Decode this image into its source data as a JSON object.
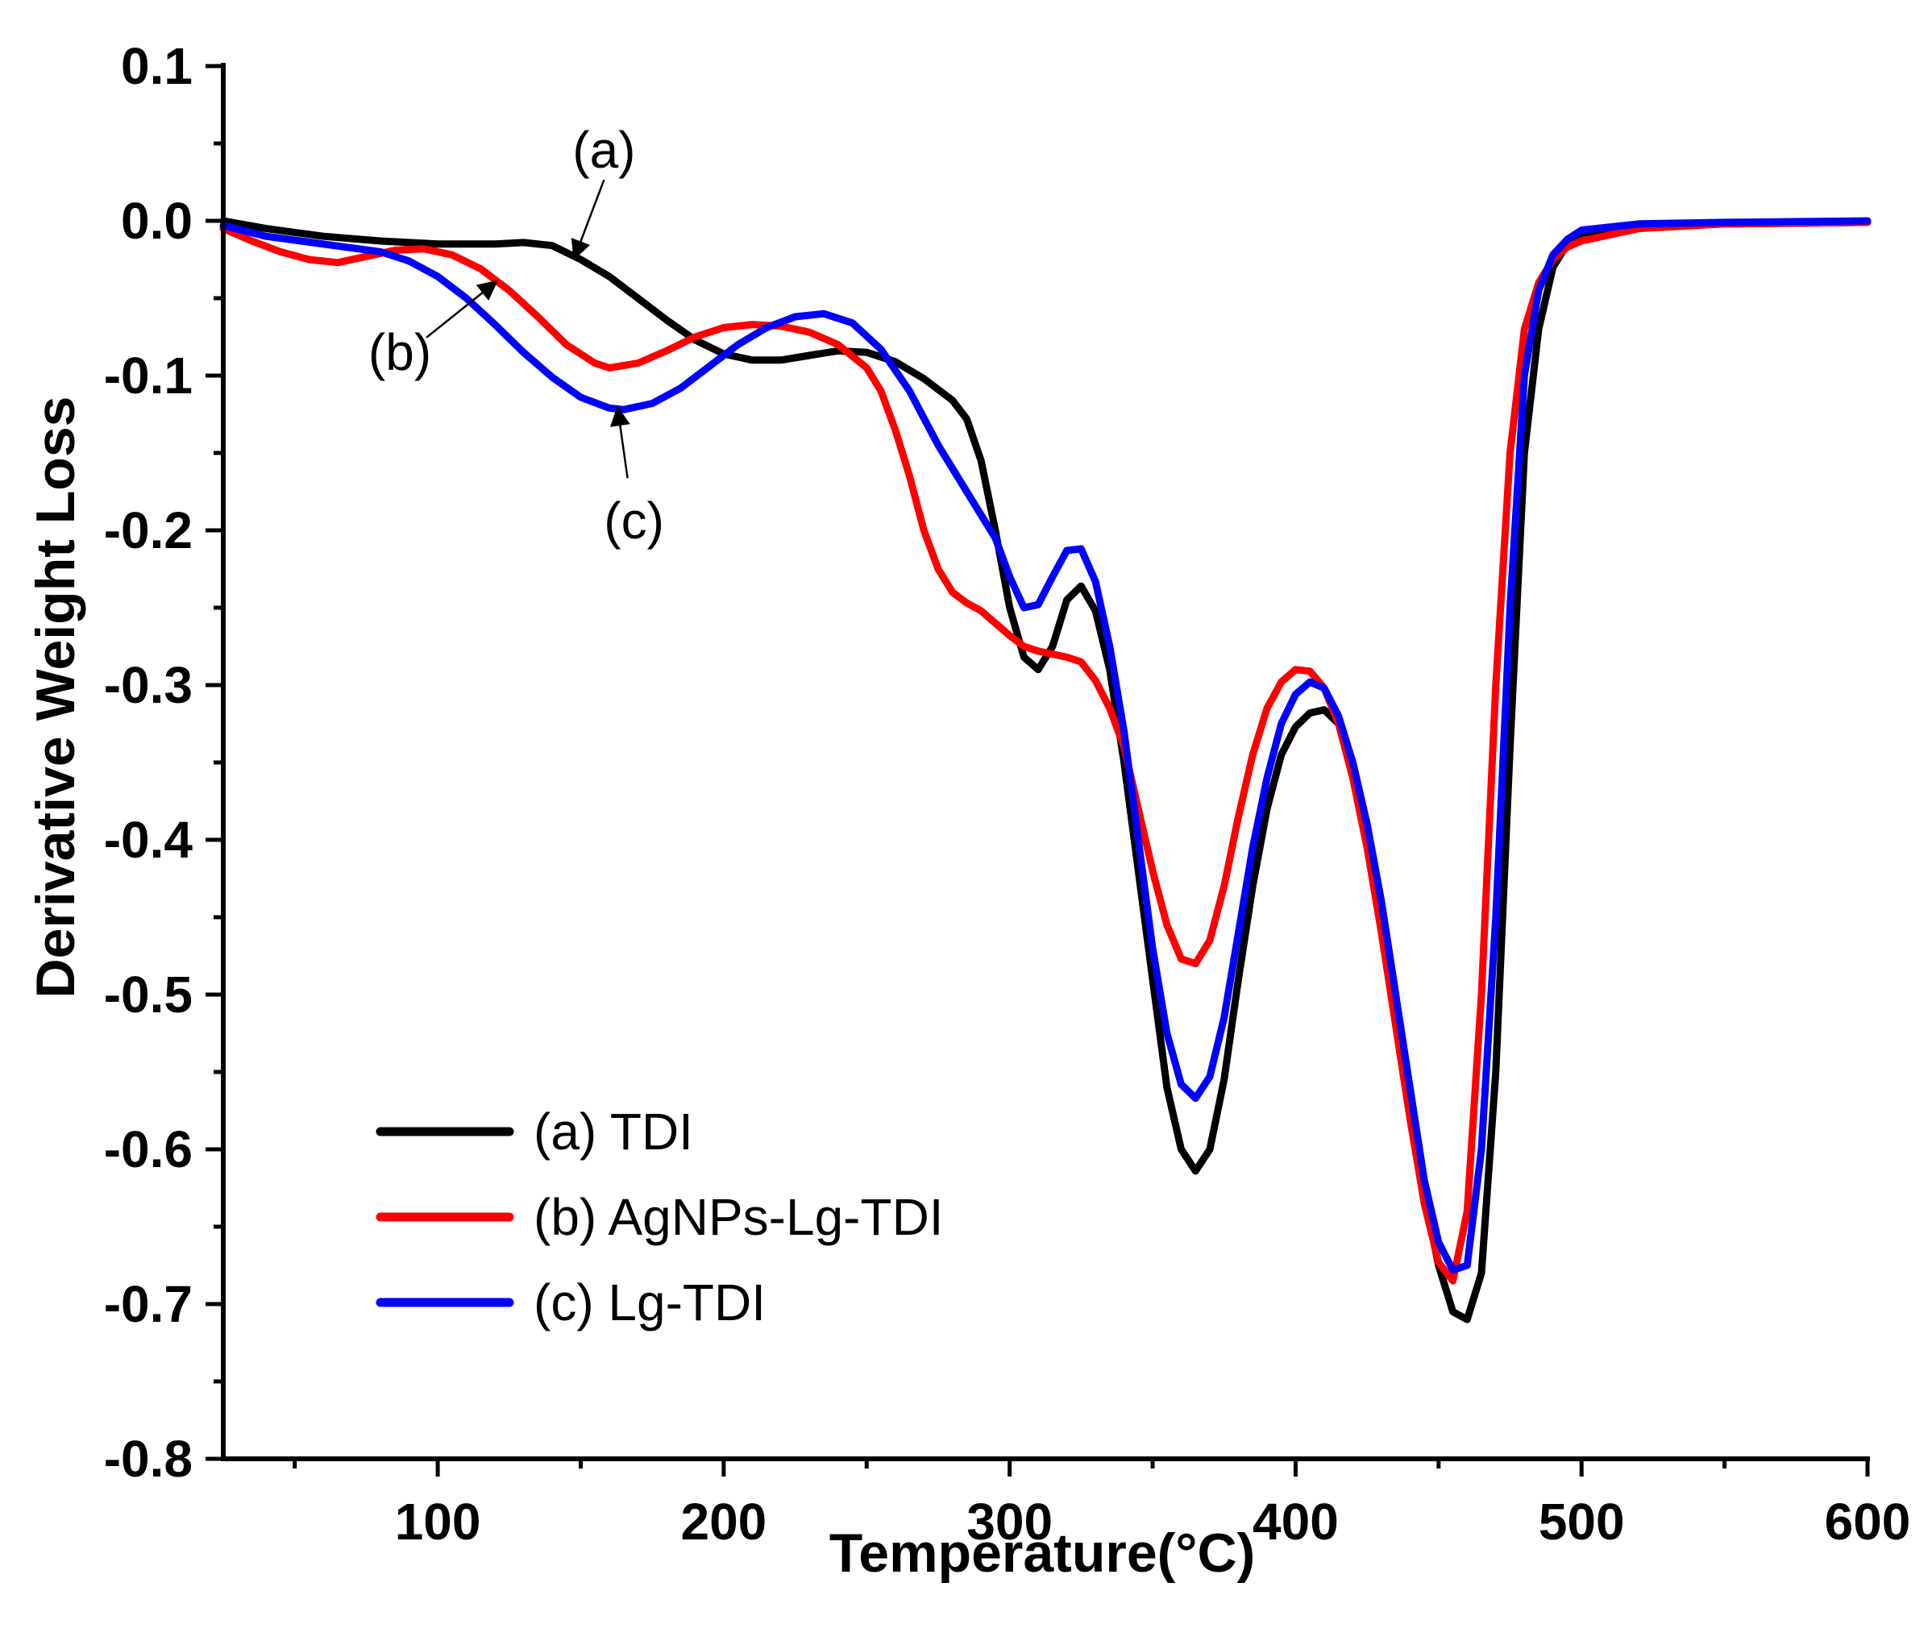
{
  "chart_data": {
    "type": "line",
    "title": "",
    "xlabel": "Temperature(°C)",
    "ylabel": "Derivative Weight Loss",
    "xlim": [
      25,
      600
    ],
    "ylim": [
      -0.8,
      0.1
    ],
    "x_ticks": [
      100,
      200,
      300,
      400,
      500,
      600
    ],
    "x_tick_labels": [
      "100",
      "200",
      "300",
      "400",
      "500",
      "600"
    ],
    "y_ticks": [
      0.1,
      0.0,
      -0.1,
      -0.2,
      -0.3,
      -0.4,
      -0.5,
      -0.6,
      -0.7,
      -0.8
    ],
    "y_tick_labels": [
      "0.1",
      "0.0",
      "-0.1",
      "-0.2",
      "-0.3",
      "-0.4",
      "-0.5",
      "-0.6",
      "-0.7",
      "-0.8"
    ],
    "grid": false,
    "legend": {
      "placement": "bottom-left"
    },
    "series": [
      {
        "name": "(a) TDI",
        "color": "#000000",
        "points": [
          [
            25,
            0.0
          ],
          [
            40,
            -0.005
          ],
          [
            60,
            -0.01
          ],
          [
            80,
            -0.013
          ],
          [
            100,
            -0.015
          ],
          [
            120,
            -0.015
          ],
          [
            130,
            -0.014
          ],
          [
            140,
            -0.016
          ],
          [
            150,
            -0.025
          ],
          [
            160,
            -0.036
          ],
          [
            170,
            -0.05
          ],
          [
            180,
            -0.064
          ],
          [
            190,
            -0.077
          ],
          [
            200,
            -0.086
          ],
          [
            210,
            -0.09
          ],
          [
            220,
            -0.09
          ],
          [
            230,
            -0.087
          ],
          [
            240,
            -0.084
          ],
          [
            250,
            -0.085
          ],
          [
            260,
            -0.091
          ],
          [
            270,
            -0.102
          ],
          [
            280,
            -0.116
          ],
          [
            285,
            -0.128
          ],
          [
            290,
            -0.155
          ],
          [
            295,
            -0.2
          ],
          [
            300,
            -0.25
          ],
          [
            305,
            -0.282
          ],
          [
            310,
            -0.29
          ],
          [
            315,
            -0.275
          ],
          [
            320,
            -0.245
          ],
          [
            325,
            -0.236
          ],
          [
            330,
            -0.252
          ],
          [
            335,
            -0.29
          ],
          [
            340,
            -0.35
          ],
          [
            345,
            -0.42
          ],
          [
            350,
            -0.49
          ],
          [
            355,
            -0.56
          ],
          [
            360,
            -0.6
          ],
          [
            365,
            -0.614
          ],
          [
            370,
            -0.6
          ],
          [
            375,
            -0.555
          ],
          [
            380,
            -0.49
          ],
          [
            385,
            -0.43
          ],
          [
            390,
            -0.38
          ],
          [
            395,
            -0.345
          ],
          [
            400,
            -0.327
          ],
          [
            405,
            -0.318
          ],
          [
            410,
            -0.316
          ],
          [
            415,
            -0.325
          ],
          [
            420,
            -0.35
          ],
          [
            425,
            -0.39
          ],
          [
            430,
            -0.44
          ],
          [
            435,
            -0.5
          ],
          [
            440,
            -0.565
          ],
          [
            445,
            -0.63
          ],
          [
            450,
            -0.675
          ],
          [
            455,
            -0.705
          ],
          [
            460,
            -0.71
          ],
          [
            465,
            -0.68
          ],
          [
            470,
            -0.55
          ],
          [
            475,
            -0.34
          ],
          [
            480,
            -0.15
          ],
          [
            485,
            -0.07
          ],
          [
            490,
            -0.03
          ],
          [
            495,
            -0.015
          ],
          [
            500,
            -0.008
          ],
          [
            520,
            -0.004
          ],
          [
            550,
            -0.002
          ],
          [
            600,
            -0.001
          ]
        ]
      },
      {
        "name": "(b) AgNPs-Lg-TDI",
        "color": "#ff0000",
        "points": [
          [
            25,
            -0.005
          ],
          [
            35,
            -0.013
          ],
          [
            45,
            -0.02
          ],
          [
            55,
            -0.025
          ],
          [
            65,
            -0.027
          ],
          [
            75,
            -0.023
          ],
          [
            85,
            -0.019
          ],
          [
            95,
            -0.018
          ],
          [
            105,
            -0.022
          ],
          [
            115,
            -0.031
          ],
          [
            125,
            -0.045
          ],
          [
            135,
            -0.062
          ],
          [
            145,
            -0.08
          ],
          [
            155,
            -0.092
          ],
          [
            160,
            -0.095
          ],
          [
            170,
            -0.092
          ],
          [
            180,
            -0.084
          ],
          [
            190,
            -0.075
          ],
          [
            200,
            -0.069
          ],
          [
            210,
            -0.067
          ],
          [
            220,
            -0.068
          ],
          [
            230,
            -0.072
          ],
          [
            240,
            -0.08
          ],
          [
            250,
            -0.095
          ],
          [
            255,
            -0.11
          ],
          [
            260,
            -0.135
          ],
          [
            265,
            -0.165
          ],
          [
            270,
            -0.2
          ],
          [
            275,
            -0.225
          ],
          [
            280,
            -0.24
          ],
          [
            285,
            -0.247
          ],
          [
            290,
            -0.252
          ],
          [
            295,
            -0.26
          ],
          [
            300,
            -0.268
          ],
          [
            305,
            -0.275
          ],
          [
            310,
            -0.278
          ],
          [
            315,
            -0.28
          ],
          [
            320,
            -0.282
          ],
          [
            325,
            -0.285
          ],
          [
            330,
            -0.297
          ],
          [
            335,
            -0.315
          ],
          [
            340,
            -0.34
          ],
          [
            345,
            -0.38
          ],
          [
            350,
            -0.42
          ],
          [
            355,
            -0.455
          ],
          [
            360,
            -0.477
          ],
          [
            365,
            -0.48
          ],
          [
            370,
            -0.465
          ],
          [
            375,
            -0.43
          ],
          [
            380,
            -0.385
          ],
          [
            385,
            -0.345
          ],
          [
            390,
            -0.315
          ],
          [
            395,
            -0.298
          ],
          [
            400,
            -0.29
          ],
          [
            405,
            -0.291
          ],
          [
            410,
            -0.302
          ],
          [
            415,
            -0.325
          ],
          [
            420,
            -0.36
          ],
          [
            425,
            -0.405
          ],
          [
            430,
            -0.46
          ],
          [
            435,
            -0.52
          ],
          [
            440,
            -0.58
          ],
          [
            445,
            -0.635
          ],
          [
            450,
            -0.673
          ],
          [
            455,
            -0.685
          ],
          [
            460,
            -0.64
          ],
          [
            465,
            -0.5
          ],
          [
            470,
            -0.3
          ],
          [
            475,
            -0.15
          ],
          [
            480,
            -0.07
          ],
          [
            485,
            -0.04
          ],
          [
            490,
            -0.025
          ],
          [
            495,
            -0.017
          ],
          [
            500,
            -0.013
          ],
          [
            520,
            -0.005
          ],
          [
            550,
            -0.002
          ],
          [
            600,
            -0.001
          ]
        ]
      },
      {
        "name": "(c) Lg-TDI",
        "color": "#0000ff",
        "points": [
          [
            25,
            -0.003
          ],
          [
            40,
            -0.01
          ],
          [
            60,
            -0.015
          ],
          [
            80,
            -0.02
          ],
          [
            90,
            -0.026
          ],
          [
            100,
            -0.036
          ],
          [
            110,
            -0.05
          ],
          [
            120,
            -0.067
          ],
          [
            130,
            -0.085
          ],
          [
            140,
            -0.101
          ],
          [
            150,
            -0.114
          ],
          [
            160,
            -0.121
          ],
          [
            165,
            -0.122
          ],
          [
            175,
            -0.118
          ],
          [
            185,
            -0.108
          ],
          [
            195,
            -0.094
          ],
          [
            205,
            -0.08
          ],
          [
            215,
            -0.069
          ],
          [
            225,
            -0.062
          ],
          [
            235,
            -0.06
          ],
          [
            245,
            -0.066
          ],
          [
            255,
            -0.083
          ],
          [
            265,
            -0.11
          ],
          [
            275,
            -0.145
          ],
          [
            285,
            -0.175
          ],
          [
            295,
            -0.205
          ],
          [
            300,
            -0.23
          ],
          [
            305,
            -0.25
          ],
          [
            310,
            -0.248
          ],
          [
            315,
            -0.23
          ],
          [
            320,
            -0.213
          ],
          [
            325,
            -0.212
          ],
          [
            330,
            -0.233
          ],
          [
            335,
            -0.275
          ],
          [
            340,
            -0.33
          ],
          [
            345,
            -0.4
          ],
          [
            350,
            -0.47
          ],
          [
            355,
            -0.525
          ],
          [
            360,
            -0.558
          ],
          [
            365,
            -0.567
          ],
          [
            370,
            -0.553
          ],
          [
            375,
            -0.515
          ],
          [
            380,
            -0.46
          ],
          [
            385,
            -0.405
          ],
          [
            390,
            -0.36
          ],
          [
            395,
            -0.325
          ],
          [
            400,
            -0.306
          ],
          [
            405,
            -0.298
          ],
          [
            410,
            -0.302
          ],
          [
            415,
            -0.32
          ],
          [
            420,
            -0.35
          ],
          [
            425,
            -0.39
          ],
          [
            430,
            -0.44
          ],
          [
            435,
            -0.5
          ],
          [
            440,
            -0.56
          ],
          [
            445,
            -0.62
          ],
          [
            450,
            -0.66
          ],
          [
            455,
            -0.678
          ],
          [
            460,
            -0.675
          ],
          [
            465,
            -0.6
          ],
          [
            470,
            -0.45
          ],
          [
            475,
            -0.25
          ],
          [
            480,
            -0.1
          ],
          [
            485,
            -0.045
          ],
          [
            490,
            -0.022
          ],
          [
            495,
            -0.012
          ],
          [
            500,
            -0.006
          ],
          [
            520,
            -0.002
          ],
          [
            550,
            -0.001
          ],
          [
            600,
            0.0
          ]
        ]
      }
    ],
    "annotations": [
      {
        "label": "(a)",
        "series": 0,
        "x": 148,
        "y": -0.023
      },
      {
        "label": "(b)",
        "series": 1,
        "x": 120,
        "y": -0.04
      },
      {
        "label": "(c)",
        "series": 2,
        "x": 163,
        "y": -0.122
      }
    ]
  }
}
